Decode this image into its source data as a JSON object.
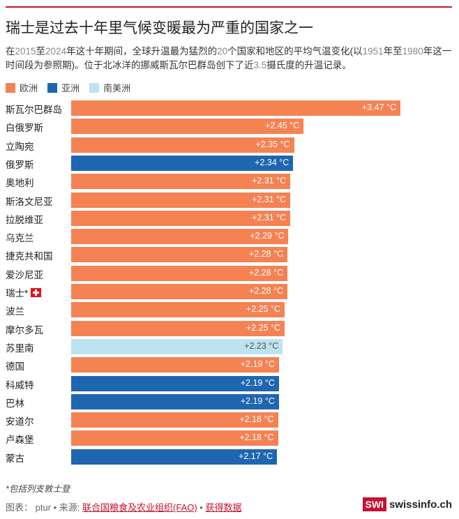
{
  "title": "瑞士是过去十年里气候变暖最为严重的国家之一",
  "subtitle": {
    "part1": "在",
    "year1": "2015",
    "part2": "至",
    "year2": "2024",
    "part3": "年这十年期间，全球升温最为猛烈的",
    "count": "20",
    "part4": "个国家和地区的平均气温变化(以",
    "year3": "1951",
    "part5": "年至",
    "year4": "1980",
    "part6": "年这一时间段为参照期)。位于北冰洋的挪威斯瓦尔巴群岛创下了近",
    "value": "3.5",
    "part7": "摄氏度的升温记录。"
  },
  "legend": [
    {
      "label": "欧洲",
      "color": "#f58253"
    },
    {
      "label": "亚洲",
      "color": "#1f66b1"
    },
    {
      "label": "南美洲",
      "color": "#bde3f0"
    }
  ],
  "chart_data": {
    "type": "bar",
    "orientation": "horizontal",
    "title": "瑞士是过去十年里气候变暖最为严重的国家之一",
    "xlim": [
      0,
      3.6
    ],
    "unit": "°C",
    "categories": [
      "斯瓦尔巴群岛",
      "白俄罗斯",
      "立陶宛",
      "俄罗斯",
      "奥地利",
      "斯洛文尼亚",
      "拉脱维亚",
      "乌克兰",
      "捷克共和国",
      "爱沙尼亚",
      "瑞士*",
      "波兰",
      "摩尔多瓦",
      "苏里南",
      "德国",
      "科威特",
      "巴林",
      "安道尔",
      "卢森堡",
      "蒙古"
    ],
    "values": [
      3.47,
      2.45,
      2.35,
      2.34,
      2.31,
      2.31,
      2.31,
      2.29,
      2.28,
      2.28,
      2.28,
      2.25,
      2.25,
      2.23,
      2.19,
      2.19,
      2.19,
      2.18,
      2.18,
      2.17
    ],
    "labels": [
      "+3.47 °C",
      "+2.45 °C",
      "+2.35 °C",
      "+2.34 °C",
      "+2.31 °C",
      "+2.31 °C",
      "+2.31 °C",
      "+2.29 °C",
      "+2.28 °C",
      "+2.28 °C",
      "+2.28 °C",
      "+2.25 °C",
      "+2.25 °C",
      "+2.23 °C",
      "+2.19 °C",
      "+2.19 °C",
      "+2.19 °C",
      "+2.18 °C",
      "+2.18 °C",
      "+2.17 °C"
    ],
    "regions": [
      "欧洲",
      "欧洲",
      "欧洲",
      "亚洲",
      "欧洲",
      "欧洲",
      "欧洲",
      "欧洲",
      "欧洲",
      "欧洲",
      "欧洲",
      "欧洲",
      "欧洲",
      "南美洲",
      "欧洲",
      "亚洲",
      "亚洲",
      "欧洲",
      "欧洲",
      "亚洲"
    ],
    "flag_category": "瑞士*",
    "legend_position": "top-left",
    "grid": false
  },
  "colors": {
    "accent_line": "#c8102e",
    "label_dark_text": "#ffffff",
    "label_light_text": "#555555"
  },
  "footnote": "*包括列支敦士登",
  "source": {
    "prefix": "图表： ptur • 来源: ",
    "link1": "联合国粮食及农业组织(FAO)",
    "sep": " • ",
    "link2": "获得数据"
  },
  "logo": {
    "box": "SWI",
    "text": "swissinfo.ch"
  }
}
